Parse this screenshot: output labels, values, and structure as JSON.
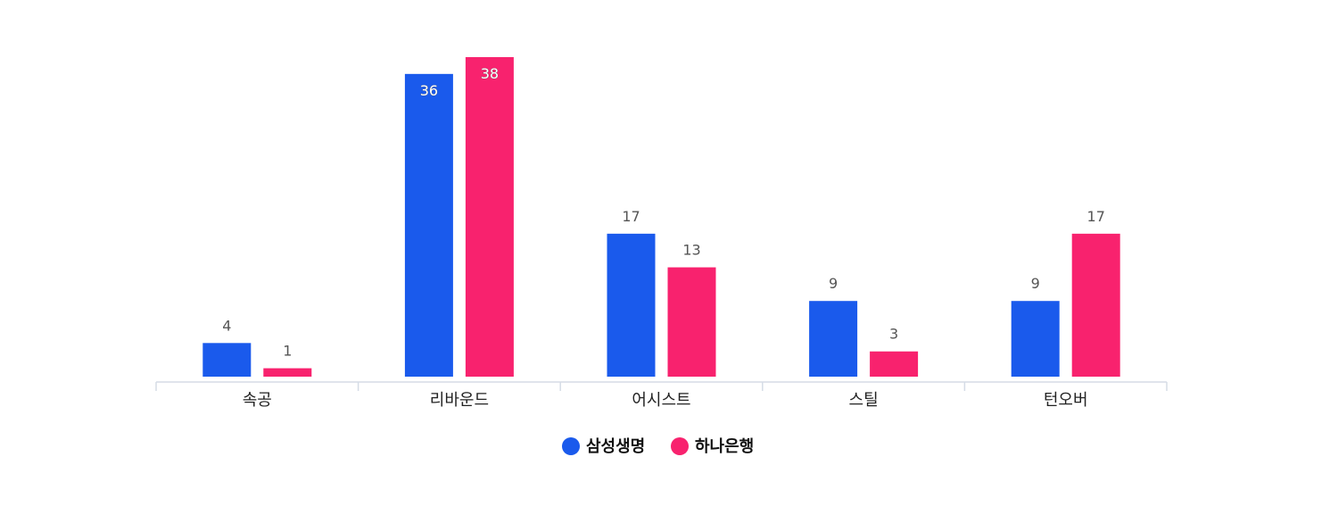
{
  "chart_data": {
    "type": "bar",
    "categories": [
      "속공",
      "리바운드",
      "어시스트",
      "스틸",
      "턴오버"
    ],
    "series": [
      {
        "name": "삼성생명",
        "color": "#1a5aec",
        "values": [
          4,
          36,
          17,
          9,
          9
        ]
      },
      {
        "name": "하나은행",
        "color": "#f8226e",
        "values": [
          1,
          38,
          13,
          3,
          17
        ]
      }
    ],
    "ylim": [
      0,
      38
    ],
    "grid": false,
    "legend_position": "bottom-center"
  }
}
